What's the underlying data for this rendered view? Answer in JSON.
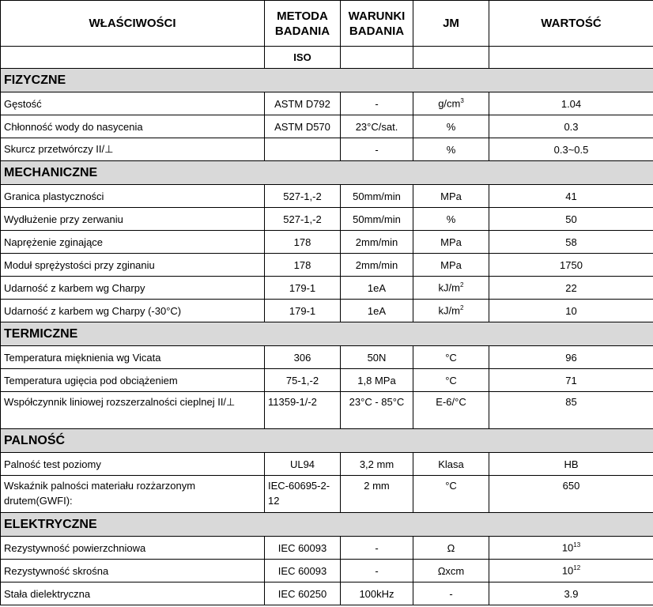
{
  "header": {
    "property": "WŁAŚCIWOŚCI",
    "method": "METODA BADANIA",
    "conditions": "WARUNKI BADANIA",
    "unit": "JM",
    "value": "WARTOŚĆ",
    "method_sub": "ISO"
  },
  "sections": [
    {
      "title": "FIZYCZNE",
      "rows": [
        {
          "property": "Gęstość",
          "method": "ASTM D792",
          "conditions": "-",
          "unit": "g/cm",
          "unit_sup": "3",
          "value": "1.04"
        },
        {
          "property": "Chłonność wody do nasycenia",
          "method": "ASTM D570",
          "conditions": "23°C/sat.",
          "unit": "%",
          "value": "0.3"
        },
        {
          "property": "Skurcz przetwórczy II/⊥",
          "method": "",
          "conditions": "-",
          "unit": "%",
          "value": "0.3~0.5"
        }
      ]
    },
    {
      "title": "MECHANICZNE",
      "rows": [
        {
          "property": "Granica plastyczności",
          "method": "527-1,-2",
          "conditions": "50mm/min",
          "unit": "MPa",
          "value": "41"
        },
        {
          "property": "Wydłużenie przy zerwaniu",
          "method": "527-1,-2",
          "conditions": "50mm/min",
          "unit": "%",
          "value": "50"
        },
        {
          "property": "Naprężenie zginające",
          "method": "178",
          "conditions": "2mm/min",
          "unit": "MPa",
          "value": "58"
        },
        {
          "property": "Moduł sprężystości przy zginaniu",
          "method": "178",
          "conditions": "2mm/min",
          "unit": "MPa",
          "value": "1750"
        },
        {
          "property": "Udarność z karbem wg Charpy",
          "method": "179-1",
          "conditions": "1eA",
          "unit": "kJ/m",
          "unit_sup": "2",
          "value": "22"
        },
        {
          "property": "Udarność z karbem wg Charpy (-30°C)",
          "method": "179-1",
          "conditions": "1eA",
          "unit": "kJ/m",
          "unit_sup": "2",
          "value": "10"
        }
      ]
    },
    {
      "title": "TERMICZNE",
      "rows": [
        {
          "property": "Temperatura mięknienia wg Vicata",
          "method": "306",
          "conditions": "50N",
          "unit": "°C",
          "value": "96"
        },
        {
          "property": "Temperatura ugięcia pod obciążeniem",
          "method": "75-1,-2",
          "conditions": "1,8 MPa",
          "unit": "°C",
          "value": "71"
        },
        {
          "property": "Współczynnik liniowej rozszerzalności cieplnej II/⊥",
          "method": "11359-1/-2",
          "conditions": "23°C - 85°C",
          "unit": "E-6/°C",
          "value": "85",
          "tall": true
        }
      ]
    },
    {
      "title": "PALNOŚĆ",
      "rows": [
        {
          "property": "Palność test poziomy",
          "method": "UL94",
          "conditions": "3,2 mm",
          "unit": "Klasa",
          "value": "HB"
        },
        {
          "property": "Wskaźnik palności materiału rozżarzonym drutem(GWFI):",
          "method": "IEC-60695-2-12",
          "conditions": "2 mm",
          "unit": "°C",
          "value": "650",
          "tall": true
        }
      ]
    },
    {
      "title": "ELEKTRYCZNE",
      "rows": [
        {
          "property": "Rezystywność powierzchniowa",
          "method": "IEC 60093",
          "conditions": "-",
          "unit": "Ω",
          "value": "10",
          "value_sup": "13"
        },
        {
          "property": "Rezystywność skrośna",
          "method": "IEC 60093",
          "conditions": "-",
          "unit": "Ωxcm",
          "value": "10",
          "value_sup": "12"
        },
        {
          "property": "Stała dielektryczna",
          "method": "IEC 60250",
          "conditions": "100kHz",
          "unit": "-",
          "value": "3.9"
        }
      ]
    }
  ]
}
